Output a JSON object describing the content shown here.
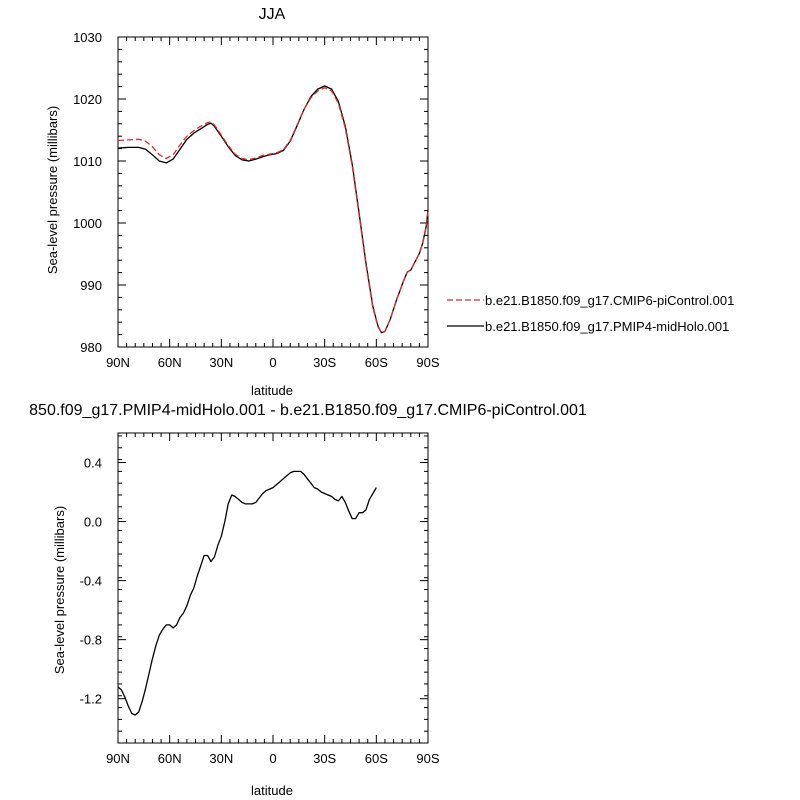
{
  "chart_data": [
    {
      "type": "line",
      "title": "JJA",
      "xlabel": "latitude",
      "ylabel": "Sea-level pressure (millibars)",
      "xlim": [
        90,
        -90
      ],
      "ylim": [
        980,
        1030
      ],
      "x_ticks": [
        {
          "value": 90,
          "label": "90N"
        },
        {
          "value": 60,
          "label": "60N"
        },
        {
          "value": 30,
          "label": "30N"
        },
        {
          "value": 0,
          "label": "0"
        },
        {
          "value": -30,
          "label": "30S"
        },
        {
          "value": -60,
          "label": "60S"
        },
        {
          "value": -90,
          "label": "90S"
        }
      ],
      "y_ticks": [
        {
          "value": 980,
          "label": "980"
        },
        {
          "value": 990,
          "label": "990"
        },
        {
          "value": 1000,
          "label": "1000"
        },
        {
          "value": 1010,
          "label": "1010"
        },
        {
          "value": 1020,
          "label": "1020"
        },
        {
          "value": 1030,
          "label": "1030"
        }
      ],
      "legend_position": "right",
      "series": [
        {
          "name": "b.e21.B1850.f09_g17.CMIP6-piControl.001",
          "color": "#e8252b",
          "dash": "dashed",
          "points": [
            [
              90,
              1013.3
            ],
            [
              84,
              1013.4
            ],
            [
              78,
              1013.5
            ],
            [
              74,
              1013.2
            ],
            [
              70,
              1012.3
            ],
            [
              66,
              1011.0
            ],
            [
              62,
              1010.4
            ],
            [
              58,
              1011.0
            ],
            [
              54,
              1012.6
            ],
            [
              50,
              1014.0
            ],
            [
              46,
              1014.9
            ],
            [
              42,
              1015.6
            ],
            [
              38,
              1016.2
            ],
            [
              36,
              1016.3
            ],
            [
              34,
              1015.8
            ],
            [
              30,
              1014.2
            ],
            [
              26,
              1012.5
            ],
            [
              22,
              1011.1
            ],
            [
              18,
              1010.4
            ],
            [
              14,
              1010.2
            ],
            [
              10,
              1010.5
            ],
            [
              6,
              1010.9
            ],
            [
              2,
              1011.1
            ],
            [
              -2,
              1011.3
            ],
            [
              -6,
              1011.8
            ],
            [
              -10,
              1013.3
            ],
            [
              -14,
              1015.8
            ],
            [
              -18,
              1018.3
            ],
            [
              -22,
              1020.2
            ],
            [
              -26,
              1021.3
            ],
            [
              -30,
              1021.8
            ],
            [
              -34,
              1021.3
            ],
            [
              -38,
              1019.3
            ],
            [
              -42,
              1015.3
            ],
            [
              -46,
              1009.2
            ],
            [
              -50,
              1001.3
            ],
            [
              -54,
              993.2
            ],
            [
              -58,
              986.3
            ],
            [
              -61,
              983.2
            ],
            [
              -63,
              982.3
            ],
            [
              -65,
              982.5
            ],
            [
              -68,
              984.4
            ],
            [
              -72,
              987.8
            ],
            [
              -76,
              990.8
            ],
            [
              -78,
              992.1
            ],
            [
              -80,
              992.4
            ],
            [
              -82,
              993.5
            ],
            [
              -85,
              995.1
            ],
            [
              -87,
              996.8
            ],
            [
              -89,
              999.5
            ],
            [
              -90,
              1001.8
            ]
          ]
        },
        {
          "name": "b.e21.B1850.f09_g17.PMIP4-midHolo.001",
          "color": "#000000",
          "dash": "solid",
          "points": [
            [
              90,
              1012.1
            ],
            [
              84,
              1012.2
            ],
            [
              78,
              1012.2
            ],
            [
              74,
              1011.9
            ],
            [
              70,
              1011.0
            ],
            [
              66,
              1010.0
            ],
            [
              62,
              1009.7
            ],
            [
              58,
              1010.3
            ],
            [
              54,
              1011.9
            ],
            [
              50,
              1013.5
            ],
            [
              46,
              1014.5
            ],
            [
              42,
              1015.2
            ],
            [
              38,
              1015.9
            ],
            [
              36,
              1016.1
            ],
            [
              34,
              1015.6
            ],
            [
              30,
              1014.0
            ],
            [
              26,
              1012.3
            ],
            [
              22,
              1010.9
            ],
            [
              18,
              1010.2
            ],
            [
              14,
              1010.0
            ],
            [
              10,
              1010.3
            ],
            [
              6,
              1010.7
            ],
            [
              2,
              1011.0
            ],
            [
              -2,
              1011.2
            ],
            [
              -6,
              1011.7
            ],
            [
              -10,
              1013.2
            ],
            [
              -14,
              1015.7
            ],
            [
              -18,
              1018.3
            ],
            [
              -22,
              1020.4
            ],
            [
              -26,
              1021.6
            ],
            [
              -30,
              1022.1
            ],
            [
              -34,
              1021.6
            ],
            [
              -38,
              1019.6
            ],
            [
              -42,
              1015.6
            ],
            [
              -46,
              1009.5
            ],
            [
              -50,
              1001.6
            ],
            [
              -54,
              993.5
            ],
            [
              -58,
              986.5
            ],
            [
              -61,
              983.3
            ],
            [
              -63,
              982.3
            ],
            [
              -65,
              982.5
            ],
            [
              -68,
              984.4
            ],
            [
              -72,
              987.8
            ],
            [
              -76,
              990.8
            ],
            [
              -78,
              992.1
            ],
            [
              -80,
              992.4
            ],
            [
              -82,
              993.5
            ],
            [
              -85,
              995.1
            ],
            [
              -87,
              996.8
            ],
            [
              -89,
              999.6
            ],
            [
              -90,
              1002.0
            ]
          ]
        }
      ]
    },
    {
      "type": "line",
      "title": "850.f09_g17.PMIP4-midHolo.001 - b.e21.B1850.f09_g17.CMIP6-piControl.001",
      "xlabel": "latitude",
      "ylabel": "Sea-level pressure (millibars)",
      "xlim": [
        90,
        -90
      ],
      "ylim": [
        -1.5,
        0.6
      ],
      "x_ticks": [
        {
          "value": 90,
          "label": "90N"
        },
        {
          "value": 60,
          "label": "60N"
        },
        {
          "value": 30,
          "label": "30N"
        },
        {
          "value": 0,
          "label": "0"
        },
        {
          "value": -30,
          "label": "30S"
        },
        {
          "value": -60,
          "label": "60S"
        },
        {
          "value": -90,
          "label": "90S"
        }
      ],
      "y_ticks": [
        {
          "value": 0.4,
          "label": "0.4"
        },
        {
          "value": 0.0,
          "label": "0.0"
        },
        {
          "value": -0.4,
          "label": "-0.4"
        },
        {
          "value": -0.8,
          "label": "-0.8"
        },
        {
          "value": -1.2,
          "label": "-1.2"
        }
      ],
      "series": [
        {
          "color": "#000000",
          "dash": "solid",
          "points": [
            [
              90,
              -1.12
            ],
            [
              88,
              -1.14
            ],
            [
              86,
              -1.19
            ],
            [
              84,
              -1.25
            ],
            [
              82,
              -1.3
            ],
            [
              80,
              -1.31
            ],
            [
              78,
              -1.29
            ],
            [
              76,
              -1.22
            ],
            [
              74,
              -1.13
            ],
            [
              72,
              -1.03
            ],
            [
              70,
              -0.93
            ],
            [
              68,
              -0.84
            ],
            [
              66,
              -0.77
            ],
            [
              64,
              -0.73
            ],
            [
              62,
              -0.7
            ],
            [
              60,
              -0.7
            ],
            [
              58,
              -0.72
            ],
            [
              56,
              -0.7
            ],
            [
              54,
              -0.65
            ],
            [
              52,
              -0.62
            ],
            [
              50,
              -0.57
            ],
            [
              48,
              -0.5
            ],
            [
              46,
              -0.45
            ],
            [
              44,
              -0.37
            ],
            [
              42,
              -0.3
            ],
            [
              40,
              -0.23
            ],
            [
              38,
              -0.23
            ],
            [
              36,
              -0.27
            ],
            [
              34,
              -0.24
            ],
            [
              32,
              -0.16
            ],
            [
              30,
              -0.1
            ],
            [
              28,
              0.0
            ],
            [
              26,
              0.12
            ],
            [
              24,
              0.18
            ],
            [
              22,
              0.17
            ],
            [
              20,
              0.15
            ],
            [
              18,
              0.13
            ],
            [
              16,
              0.12
            ],
            [
              14,
              0.12
            ],
            [
              12,
              0.12
            ],
            [
              10,
              0.13
            ],
            [
              8,
              0.16
            ],
            [
              6,
              0.19
            ],
            [
              4,
              0.21
            ],
            [
              2,
              0.22
            ],
            [
              0,
              0.23
            ],
            [
              -2,
              0.25
            ],
            [
              -4,
              0.27
            ],
            [
              -6,
              0.29
            ],
            [
              -8,
              0.31
            ],
            [
              -10,
              0.33
            ],
            [
              -12,
              0.34
            ],
            [
              -14,
              0.34
            ],
            [
              -16,
              0.34
            ],
            [
              -18,
              0.32
            ],
            [
              -20,
              0.29
            ],
            [
              -22,
              0.26
            ],
            [
              -24,
              0.23
            ],
            [
              -26,
              0.22
            ],
            [
              -28,
              0.2
            ],
            [
              -30,
              0.19
            ],
            [
              -32,
              0.18
            ],
            [
              -34,
              0.17
            ],
            [
              -36,
              0.15
            ],
            [
              -38,
              0.14
            ],
            [
              -40,
              0.17
            ],
            [
              -42,
              0.13
            ],
            [
              -44,
              0.07
            ],
            [
              -46,
              0.02
            ],
            [
              -48,
              0.02
            ],
            [
              -50,
              0.06
            ],
            [
              -52,
              0.06
            ],
            [
              -54,
              0.08
            ],
            [
              -56,
              0.15
            ],
            [
              -58,
              0.19
            ],
            [
              -60,
              0.23
            ]
          ]
        }
      ]
    }
  ]
}
